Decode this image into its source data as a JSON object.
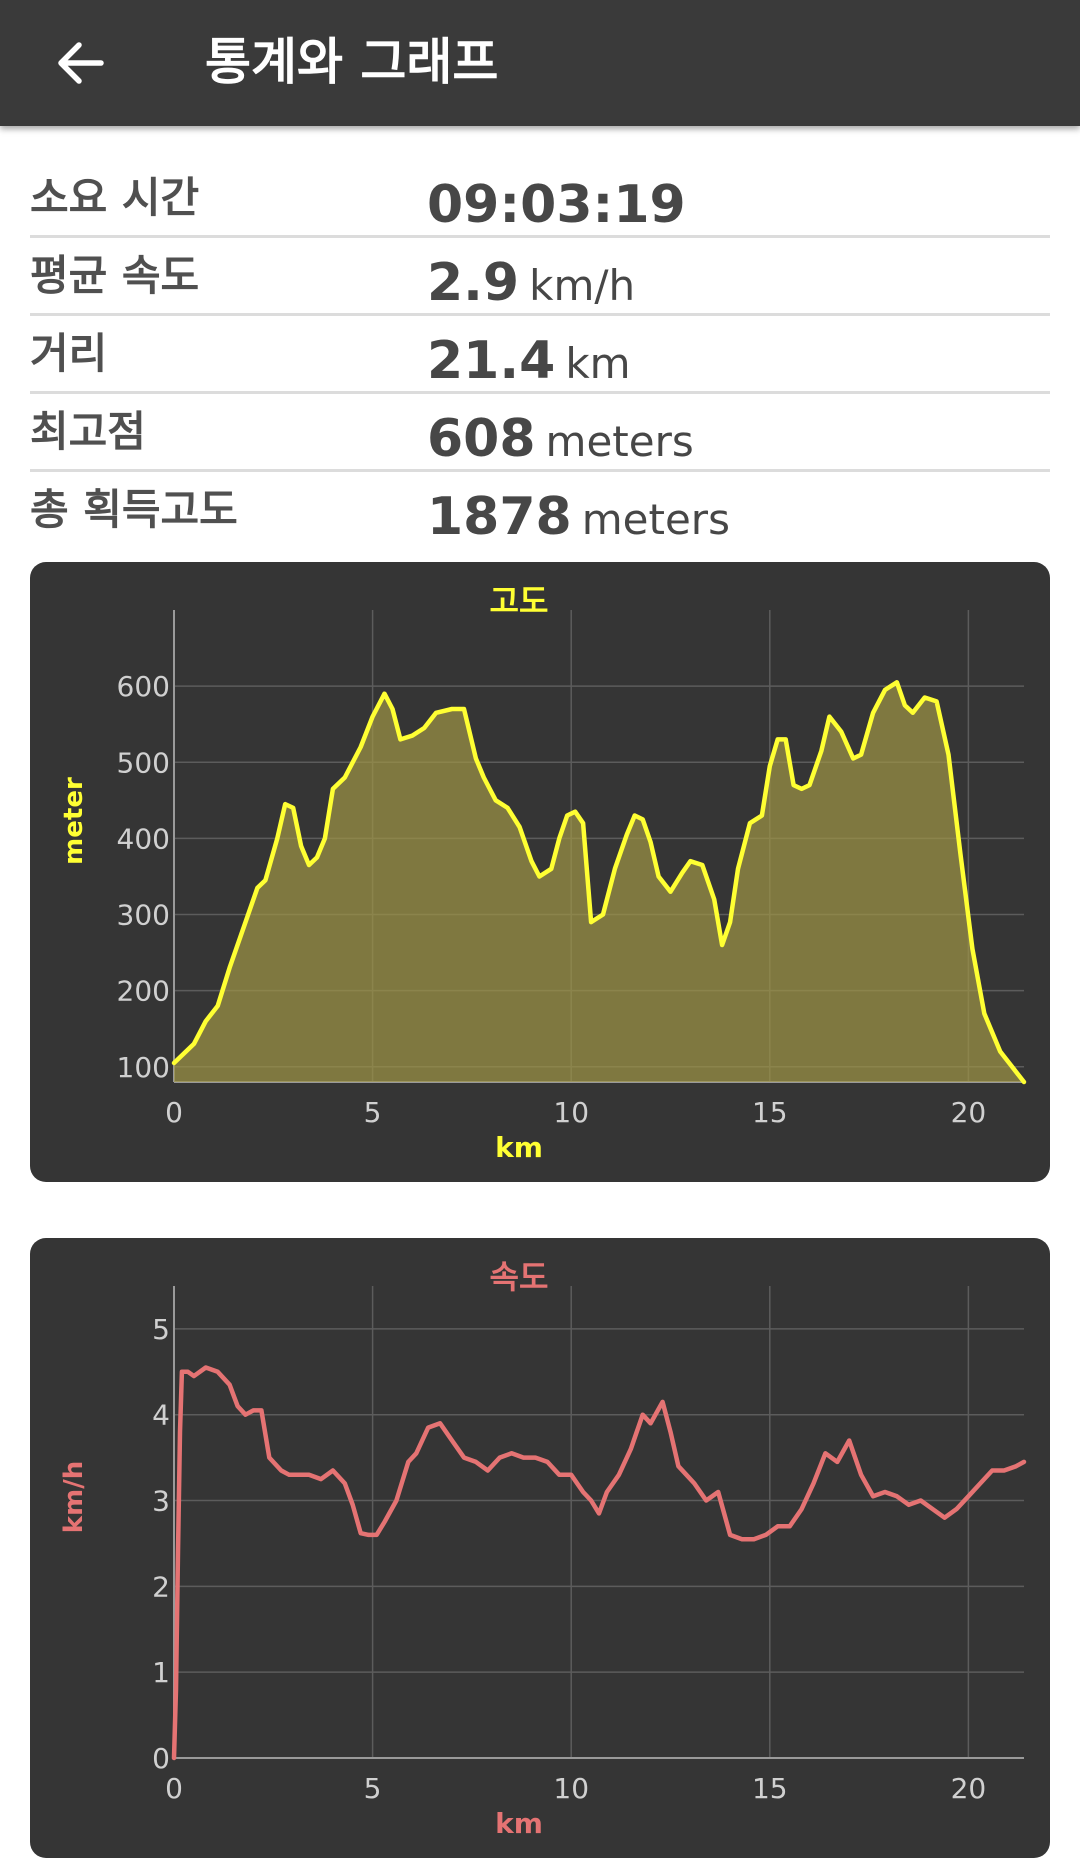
{
  "appbar": {
    "title": "통계와 그래프"
  },
  "stats": [
    {
      "label": "소요 시간",
      "value": "09:03:19",
      "unit": ""
    },
    {
      "label": "평균 속도",
      "value": "2.9",
      "unit": "km/h"
    },
    {
      "label": "거리",
      "value": "21.4",
      "unit": "km"
    },
    {
      "label": "최고점",
      "value": "608",
      "unit": "meters"
    },
    {
      "label": "총 획득고도",
      "value": "1878",
      "unit": "meters"
    }
  ],
  "colors": {
    "altitude": "#ffff33",
    "speed": "#e57373"
  },
  "chart_data": [
    {
      "type": "area",
      "title": "고도",
      "xlabel": "km",
      "ylabel": "meter",
      "xlim": [
        0,
        21.4
      ],
      "ylim": [
        80,
        700
      ],
      "xticks": [
        "0",
        "5",
        "10",
        "15",
        "20"
      ],
      "yticks": [
        "100",
        "200",
        "300",
        "400",
        "500",
        "600"
      ],
      "grid": true,
      "x": [
        0,
        0.5,
        0.8,
        1.1,
        1.4,
        1.8,
        2.1,
        2.3,
        2.6,
        2.8,
        3.0,
        3.2,
        3.4,
        3.6,
        3.8,
        4.0,
        4.3,
        4.7,
        5.0,
        5.3,
        5.5,
        5.7,
        6.0,
        6.3,
        6.6,
        7.0,
        7.3,
        7.6,
        7.8,
        8.1,
        8.4,
        8.7,
        9.0,
        9.2,
        9.5,
        9.7,
        9.9,
        10.1,
        10.3,
        10.5,
        10.8,
        11.1,
        11.4,
        11.6,
        11.8,
        12.0,
        12.2,
        12.5,
        12.8,
        13.0,
        13.3,
        13.6,
        13.8,
        14.0,
        14.2,
        14.5,
        14.8,
        15.0,
        15.2,
        15.4,
        15.6,
        15.8,
        16.0,
        16.3,
        16.5,
        16.8,
        17.1,
        17.3,
        17.6,
        17.9,
        18.2,
        18.4,
        18.6,
        18.9,
        19.2,
        19.5,
        19.8,
        20.1,
        20.4,
        20.8,
        21.1,
        21.4
      ],
      "series": [
        {
          "values": [
            105,
            130,
            160,
            180,
            230,
            290,
            335,
            345,
            400,
            445,
            440,
            390,
            365,
            375,
            400,
            465,
            480,
            520,
            560,
            590,
            570,
            530,
            535,
            545,
            565,
            570,
            570,
            505,
            480,
            450,
            440,
            415,
            370,
            350,
            360,
            400,
            430,
            435,
            420,
            290,
            300,
            360,
            405,
            430,
            425,
            395,
            350,
            330,
            355,
            370,
            365,
            320,
            260,
            290,
            360,
            420,
            430,
            495,
            530,
            530,
            470,
            465,
            470,
            515,
            560,
            540,
            505,
            510,
            565,
            595,
            605,
            575,
            565,
            585,
            580,
            510,
            380,
            255,
            170,
            120,
            100,
            80
          ]
        }
      ]
    },
    {
      "type": "line",
      "title": "속도",
      "xlabel": "km",
      "ylabel": "km/h",
      "xlim": [
        0,
        21.4
      ],
      "ylim": [
        0,
        5.5
      ],
      "xticks": [
        "0",
        "5",
        "10",
        "15",
        "20"
      ],
      "yticks": [
        "0",
        "1",
        "2",
        "3",
        "4",
        "5"
      ],
      "grid": true,
      "x": [
        0,
        0.05,
        0.1,
        0.15,
        0.2,
        0.35,
        0.5,
        0.8,
        1.1,
        1.4,
        1.6,
        1.8,
        2.0,
        2.2,
        2.4,
        2.7,
        2.9,
        3.1,
        3.4,
        3.7,
        4.0,
        4.3,
        4.5,
        4.7,
        4.9,
        5.1,
        5.3,
        5.6,
        5.9,
        6.1,
        6.4,
        6.7,
        7.0,
        7.3,
        7.6,
        7.9,
        8.2,
        8.5,
        8.8,
        9.1,
        9.4,
        9.7,
        10.0,
        10.3,
        10.5,
        10.7,
        10.9,
        11.2,
        11.5,
        11.8,
        12.0,
        12.3,
        12.5,
        12.7,
        12.9,
        13.1,
        13.4,
        13.7,
        14.0,
        14.3,
        14.6,
        14.9,
        15.2,
        15.5,
        15.8,
        16.1,
        16.4,
        16.7,
        17.0,
        17.3,
        17.6,
        17.9,
        18.2,
        18.5,
        18.8,
        19.1,
        19.4,
        19.7,
        20.0,
        20.3,
        20.6,
        20.9,
        21.2,
        21.4
      ],
      "series": [
        {
          "values": [
            0,
            0.8,
            2.4,
            3.8,
            4.5,
            4.5,
            4.45,
            4.55,
            4.5,
            4.35,
            4.1,
            4.0,
            4.05,
            4.05,
            3.5,
            3.35,
            3.3,
            3.3,
            3.3,
            3.25,
            3.35,
            3.2,
            2.95,
            2.62,
            2.6,
            2.6,
            2.75,
            3.0,
            3.45,
            3.55,
            3.85,
            3.9,
            3.7,
            3.5,
            3.45,
            3.35,
            3.5,
            3.55,
            3.5,
            3.5,
            3.45,
            3.3,
            3.3,
            3.1,
            3.0,
            2.85,
            3.1,
            3.3,
            3.6,
            4.0,
            3.9,
            4.15,
            3.8,
            3.4,
            3.3,
            3.2,
            3.0,
            3.1,
            2.6,
            2.55,
            2.55,
            2.6,
            2.7,
            2.7,
            2.9,
            3.2,
            3.55,
            3.45,
            3.7,
            3.3,
            3.05,
            3.1,
            3.05,
            2.95,
            3.0,
            2.9,
            2.8,
            2.9,
            3.05,
            3.2,
            3.35,
            3.35,
            3.4,
            3.45
          ]
        }
      ]
    }
  ]
}
